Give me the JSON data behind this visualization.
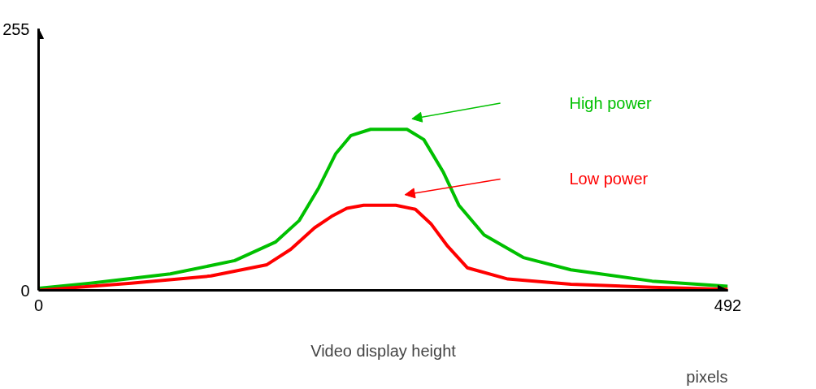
{
  "chart_data": {
    "type": "line",
    "xlabel": "Video display height",
    "xlim": [
      0,
      492
    ],
    "ylim": [
      0,
      255
    ],
    "xticks": [
      0,
      492
    ],
    "yticks": [
      0,
      255
    ],
    "marker": "none",
    "line_style": "solid",
    "annotations": [
      "pixels"
    ],
    "series": [
      {
        "name": "High power",
        "color": "#00c000",
        "x": [
          0,
          37,
          94,
          140,
          169,
          186,
          200,
          212,
          223,
          237,
          263,
          275,
          289,
          300,
          318,
          346,
          380,
          438,
          492
        ],
        "values": [
          2,
          7,
          16,
          29,
          47,
          68,
          100,
          133,
          151,
          157,
          157,
          147,
          115,
          83,
          54,
          32,
          20,
          9,
          4
        ]
      },
      {
        "name": "Low power",
        "color": "#ff0000",
        "x": [
          0,
          66,
          123,
          163,
          180,
          197,
          209,
          220,
          232,
          255,
          269,
          280,
          292,
          306,
          335,
          380,
          438,
          492
        ],
        "values": [
          0,
          7,
          14,
          25,
          40,
          61,
          72,
          80,
          83,
          83,
          79,
          65,
          43,
          22,
          11,
          6,
          3,
          1
        ]
      }
    ]
  }
}
